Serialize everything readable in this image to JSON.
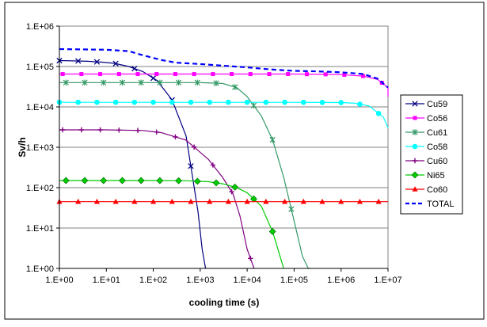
{
  "chart_data": {
    "type": "line",
    "title": "",
    "xlabel": "cooling time (s)",
    "ylabel": "Sv/h",
    "x_scale": "log",
    "y_scale": "log",
    "xlim": [
      1,
      10000000
    ],
    "ylim": [
      1,
      1000000
    ],
    "x_ticks": [
      "1.E+00",
      "1.E+01",
      "1.E+02",
      "1.E+03",
      "1.E+04",
      "1.E+05",
      "1.E+06",
      "1.E+07"
    ],
    "y_ticks": [
      "1.E+00",
      "1.E+01",
      "1.E+02",
      "1.E+03",
      "1.E+04",
      "1.E+05",
      "1.E+06"
    ],
    "grid": "horizontal major lines",
    "legend_position": "right",
    "series": [
      {
        "name": "Cu59",
        "color": "#000080",
        "marker": "x",
        "x": [
          1,
          2,
          4,
          8,
          15,
          30,
          60,
          120,
          250,
          500,
          900,
          1100,
          1300
        ],
        "y": [
          140000,
          138000,
          135000,
          128000,
          120000,
          100000,
          75000,
          45000,
          15000,
          1900,
          25,
          3,
          1
        ]
      },
      {
        "name": "Co56",
        "color": "#ff00ff",
        "marker": "square",
        "x": [
          1,
          100000,
          500000,
          1000000,
          3000000,
          6000000,
          10000000,
          15000000
        ],
        "y": [
          65000,
          65000,
          64000,
          63000,
          58000,
          48000,
          30000,
          18000
        ]
      },
      {
        "name": "Cu61",
        "color": "#339966",
        "marker": "asterisk",
        "x": [
          1,
          1000,
          3000,
          6000,
          10000,
          20000,
          35000,
          60000,
          100000,
          150000,
          200000,
          220000
        ],
        "y": [
          40000,
          40000,
          38000,
          30000,
          18000,
          6000,
          1500,
          180,
          15,
          2,
          1,
          1
        ]
      },
      {
        "name": "Co58",
        "color": "#00ffff",
        "marker": "circle",
        "x": [
          1,
          100000,
          1000000,
          2000000,
          4000000,
          8000000,
          12000000
        ],
        "y": [
          13000,
          13000,
          12800,
          12300,
          10500,
          5500,
          3000
        ]
      },
      {
        "name": "Cu60",
        "color": "#800080",
        "marker": "plus",
        "x": [
          1,
          10,
          60,
          150,
          500,
          1500,
          3000,
          5000,
          7000,
          10000,
          14000
        ],
        "y": [
          2700,
          2700,
          2600,
          2300,
          1500,
          500,
          180,
          70,
          20,
          3,
          1
        ]
      },
      {
        "name": "Ni65",
        "color": "#00cc00",
        "marker": "diamond",
        "x": [
          1,
          10,
          100,
          500,
          1500,
          3000,
          6000,
          10000,
          20000,
          35000,
          50000,
          60000
        ],
        "y": [
          150,
          150,
          150,
          148,
          140,
          125,
          100,
          75,
          35,
          8,
          2,
          1
        ]
      },
      {
        "name": "Co60",
        "color": "#ff0000",
        "marker": "triangle",
        "x": [
          1,
          10000000
        ],
        "y": [
          45,
          45
        ]
      },
      {
        "name": "TOTAL",
        "color": "#0000ff",
        "marker": "none",
        "dash": true,
        "x": [
          1,
          10,
          30,
          60,
          150,
          300,
          1000,
          3000,
          10000,
          30000,
          100000,
          300000,
          1000000,
          3000000,
          6000000,
          10000000
        ],
        "y": [
          270000,
          260000,
          240000,
          190000,
          145000,
          125000,
          115000,
          105000,
          95000,
          85000,
          78000,
          76000,
          72000,
          65000,
          50000,
          30000
        ]
      }
    ]
  }
}
